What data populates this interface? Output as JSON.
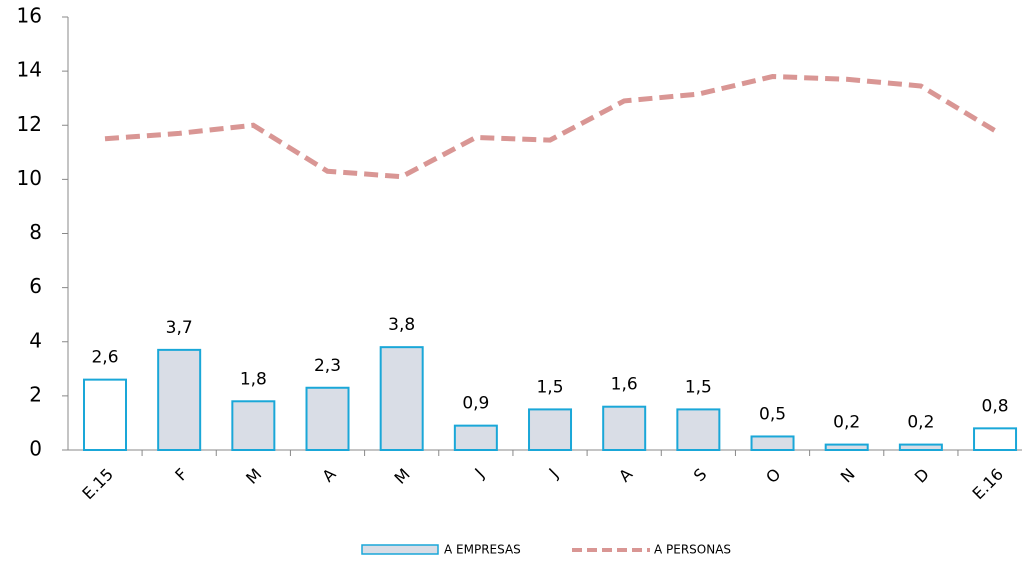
{
  "chart_data": {
    "type": "bar-line",
    "categories": [
      "E.15",
      "F",
      "M",
      "A",
      "M",
      "J",
      "J",
      "A",
      "S",
      "O",
      "N",
      "D",
      "E.16"
    ],
    "series": [
      {
        "name": "A EMPRESAS",
        "type": "bar",
        "color": "#1aa7d8",
        "fills": [
          "#ffffff",
          "#d9dde6",
          "#d9dde6",
          "#d9dde6",
          "#d9dde6",
          "#d9dde6",
          "#d9dde6",
          "#d9dde6",
          "#d9dde6",
          "#d9dde6",
          "#d9dde6",
          "#d9dde6",
          "#ffffff"
        ],
        "values": [
          2.6,
          3.7,
          1.8,
          2.3,
          3.8,
          0.9,
          1.5,
          1.6,
          1.5,
          0.5,
          0.2,
          0.2,
          0.8
        ],
        "value_labels": [
          "2,6",
          "3,7",
          "1,8",
          "2,3",
          "3,8",
          "0,9",
          "1,5",
          "1,6",
          "1,5",
          "0,5",
          "0,2",
          "0,2",
          "0,8"
        ]
      },
      {
        "name": "A PERSONAS",
        "type": "line",
        "color": "#d99694",
        "values": [
          11.5,
          11.7,
          12.0,
          10.3,
          10.1,
          11.55,
          11.45,
          12.9,
          13.15,
          13.8,
          13.7,
          13.45,
          11.8
        ]
      }
    ],
    "ylim": [
      0,
      16
    ],
    "yticks": [
      0,
      2,
      4,
      6,
      8,
      10,
      12,
      14,
      16
    ],
    "grid": false,
    "legend": "bottom"
  }
}
